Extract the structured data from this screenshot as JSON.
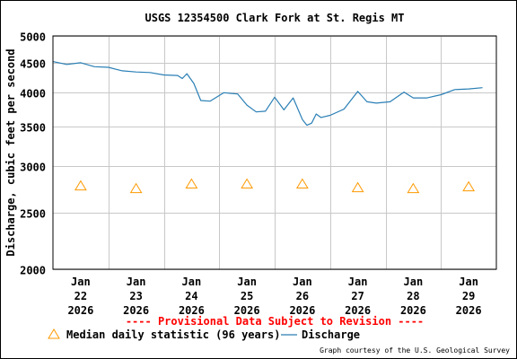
{
  "chart_data": {
    "type": "line",
    "title": "USGS 12354500 Clark Fork at St. Regis MT",
    "ylabel": "Discharge, cubic feet per second",
    "yscale": "log",
    "ylim": [
      2000,
      5000
    ],
    "yticks": [
      {
        "value": 2000,
        "label": "2000"
      },
      {
        "value": 2500,
        "label": "2500"
      },
      {
        "value": 3000,
        "label": "3000"
      },
      {
        "value": 3500,
        "label": "3500"
      },
      {
        "value": 4000,
        "label": "4000"
      },
      {
        "value": 4500,
        "label": "4500"
      },
      {
        "value": 5000,
        "label": "5000"
      }
    ],
    "xlim": [
      "2026-01-21 12:00",
      "2026-01-29 12:00"
    ],
    "xticks": [
      {
        "value": "2026-01-22",
        "label": [
          "Jan",
          "22",
          "2026"
        ]
      },
      {
        "value": "2026-01-23",
        "label": [
          "Jan",
          "23",
          "2026"
        ]
      },
      {
        "value": "2026-01-24",
        "label": [
          "Jan",
          "24",
          "2026"
        ]
      },
      {
        "value": "2026-01-25",
        "label": [
          "Jan",
          "25",
          "2026"
        ]
      },
      {
        "value": "2026-01-26",
        "label": [
          "Jan",
          "26",
          "2026"
        ]
      },
      {
        "value": "2026-01-27",
        "label": [
          "Jan",
          "27",
          "2026"
        ]
      },
      {
        "value": "2026-01-28",
        "label": [
          "Jan",
          "28",
          "2026"
        ]
      },
      {
        "value": "2026-01-29",
        "label": [
          "Jan",
          "29",
          "2026"
        ]
      }
    ],
    "grid": true,
    "legend_position": "bottom",
    "series": [
      {
        "name": "Median daily statistic (96 years)",
        "marker": "triangle",
        "color": "#ff9900",
        "points": [
          {
            "x": "2026-01-22",
            "y": 2770
          },
          {
            "x": "2026-01-23",
            "y": 2740
          },
          {
            "x": "2026-01-24",
            "y": 2790
          },
          {
            "x": "2026-01-25",
            "y": 2790
          },
          {
            "x": "2026-01-26",
            "y": 2790
          },
          {
            "x": "2026-01-27",
            "y": 2750
          },
          {
            "x": "2026-01-28",
            "y": 2740
          },
          {
            "x": "2026-01-29",
            "y": 2760
          }
        ]
      },
      {
        "name": "Discharge",
        "marker": "line",
        "color": "#2a7fb5",
        "points": [
          {
            "x": "2026-01-21 12:00",
            "y": 4520
          },
          {
            "x": "2026-01-21 18:00",
            "y": 4470
          },
          {
            "x": "2026-01-22 00:00",
            "y": 4500
          },
          {
            "x": "2026-01-22 06:00",
            "y": 4430
          },
          {
            "x": "2026-01-22 12:00",
            "y": 4420
          },
          {
            "x": "2026-01-22 18:00",
            "y": 4360
          },
          {
            "x": "2026-01-23 00:00",
            "y": 4340
          },
          {
            "x": "2026-01-23 06:00",
            "y": 4330
          },
          {
            "x": "2026-01-23 12:00",
            "y": 4290
          },
          {
            "x": "2026-01-23 18:00",
            "y": 4280
          },
          {
            "x": "2026-01-23 20:00",
            "y": 4230
          },
          {
            "x": "2026-01-23 22:00",
            "y": 4310
          },
          {
            "x": "2026-01-24 01:00",
            "y": 4150
          },
          {
            "x": "2026-01-24 04:00",
            "y": 3880
          },
          {
            "x": "2026-01-24 08:00",
            "y": 3870
          },
          {
            "x": "2026-01-24 14:00",
            "y": 4000
          },
          {
            "x": "2026-01-24 20:00",
            "y": 3980
          },
          {
            "x": "2026-01-25 00:00",
            "y": 3810
          },
          {
            "x": "2026-01-25 04:00",
            "y": 3710
          },
          {
            "x": "2026-01-25 08:00",
            "y": 3720
          },
          {
            "x": "2026-01-25 12:00",
            "y": 3930
          },
          {
            "x": "2026-01-25 16:00",
            "y": 3740
          },
          {
            "x": "2026-01-25 20:00",
            "y": 3920
          },
          {
            "x": "2026-01-26 00:00",
            "y": 3600
          },
          {
            "x": "2026-01-26 02:00",
            "y": 3520
          },
          {
            "x": "2026-01-26 04:00",
            "y": 3550
          },
          {
            "x": "2026-01-26 06:00",
            "y": 3680
          },
          {
            "x": "2026-01-26 08:00",
            "y": 3630
          },
          {
            "x": "2026-01-26 12:00",
            "y": 3660
          },
          {
            "x": "2026-01-26 18:00",
            "y": 3750
          },
          {
            "x": "2026-01-27 00:00",
            "y": 4020
          },
          {
            "x": "2026-01-27 04:00",
            "y": 3860
          },
          {
            "x": "2026-01-27 08:00",
            "y": 3840
          },
          {
            "x": "2026-01-27 14:00",
            "y": 3860
          },
          {
            "x": "2026-01-27 20:00",
            "y": 4010
          },
          {
            "x": "2026-01-28 00:00",
            "y": 3920
          },
          {
            "x": "2026-01-28 06:00",
            "y": 3920
          },
          {
            "x": "2026-01-28 12:00",
            "y": 3970
          },
          {
            "x": "2026-01-28 18:00",
            "y": 4050
          },
          {
            "x": "2026-01-29 00:00",
            "y": 4060
          },
          {
            "x": "2026-01-29 06:00",
            "y": 4080
          }
        ]
      }
    ],
    "annotations": [
      "---- Provisional Data Subject to Revision ----"
    ]
  },
  "footer": {
    "provisional": "---- Provisional Data Subject to Revision ----",
    "credit": "Graph courtesy of the U.S. Geological Survey"
  },
  "colors": {
    "grid": "#c8c8c8",
    "discharge": "#2a7fb5",
    "median": "#ff9900",
    "provisional": "#ff0000"
  }
}
